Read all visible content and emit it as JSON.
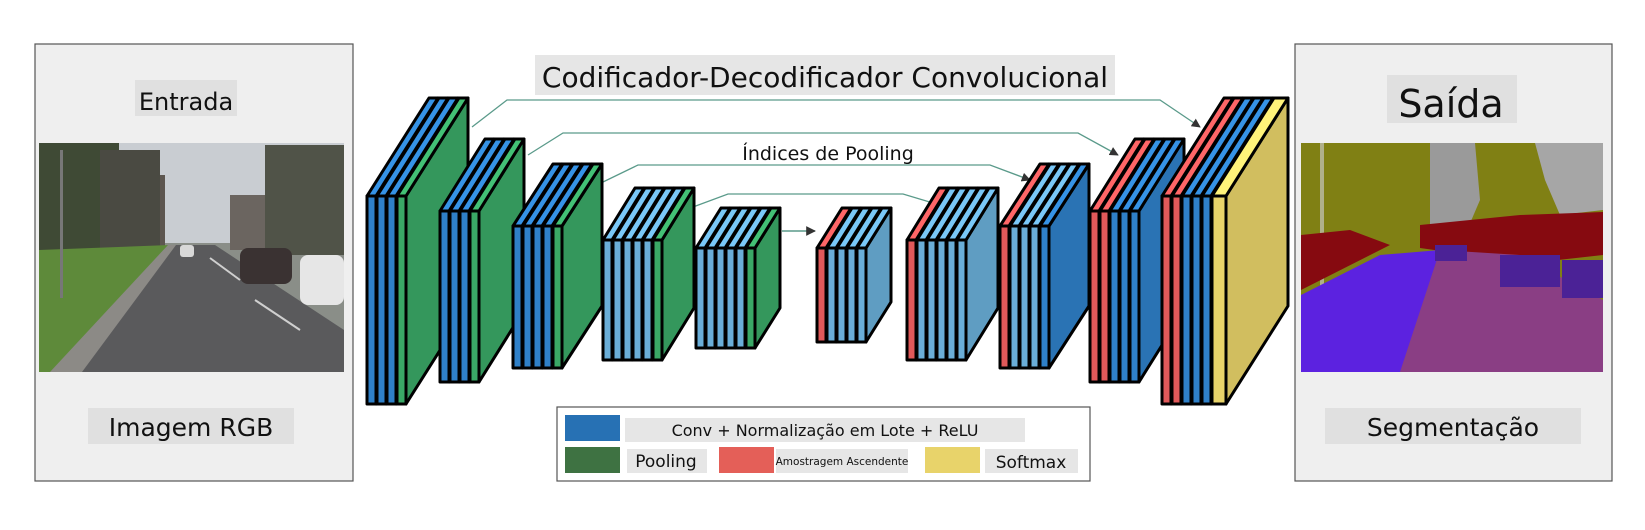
{
  "title": "Codificador-Decodificador Convolucional",
  "pooling_indices_label": "Índices de Pooling",
  "input_panel": {
    "heading": "Entrada",
    "caption": "Imagem RGB"
  },
  "output_panel": {
    "heading": "Saída",
    "caption": "Segmentação"
  },
  "legend": {
    "conv": "Conv + Normalização em Lote + ReLU",
    "pooling": "Pooling",
    "upsampling": "Amostragem Ascendente",
    "softmax": "Softmax"
  },
  "colors": {
    "conv": "#2f80c8",
    "conv_light": "#6aaed8",
    "pooling": "#3aa866",
    "upsampling": "#e0595a",
    "softmax": "#e8d36a",
    "legend_conv": "#2771b4",
    "legend_pooling": "#3e7242",
    "legend_upsampling": "#e45f58",
    "legend_softmax": "#e8d36a",
    "panel_bg": "#efefef",
    "label_bg": "#e6e6e6",
    "arrow": "#5a9a8a"
  }
}
